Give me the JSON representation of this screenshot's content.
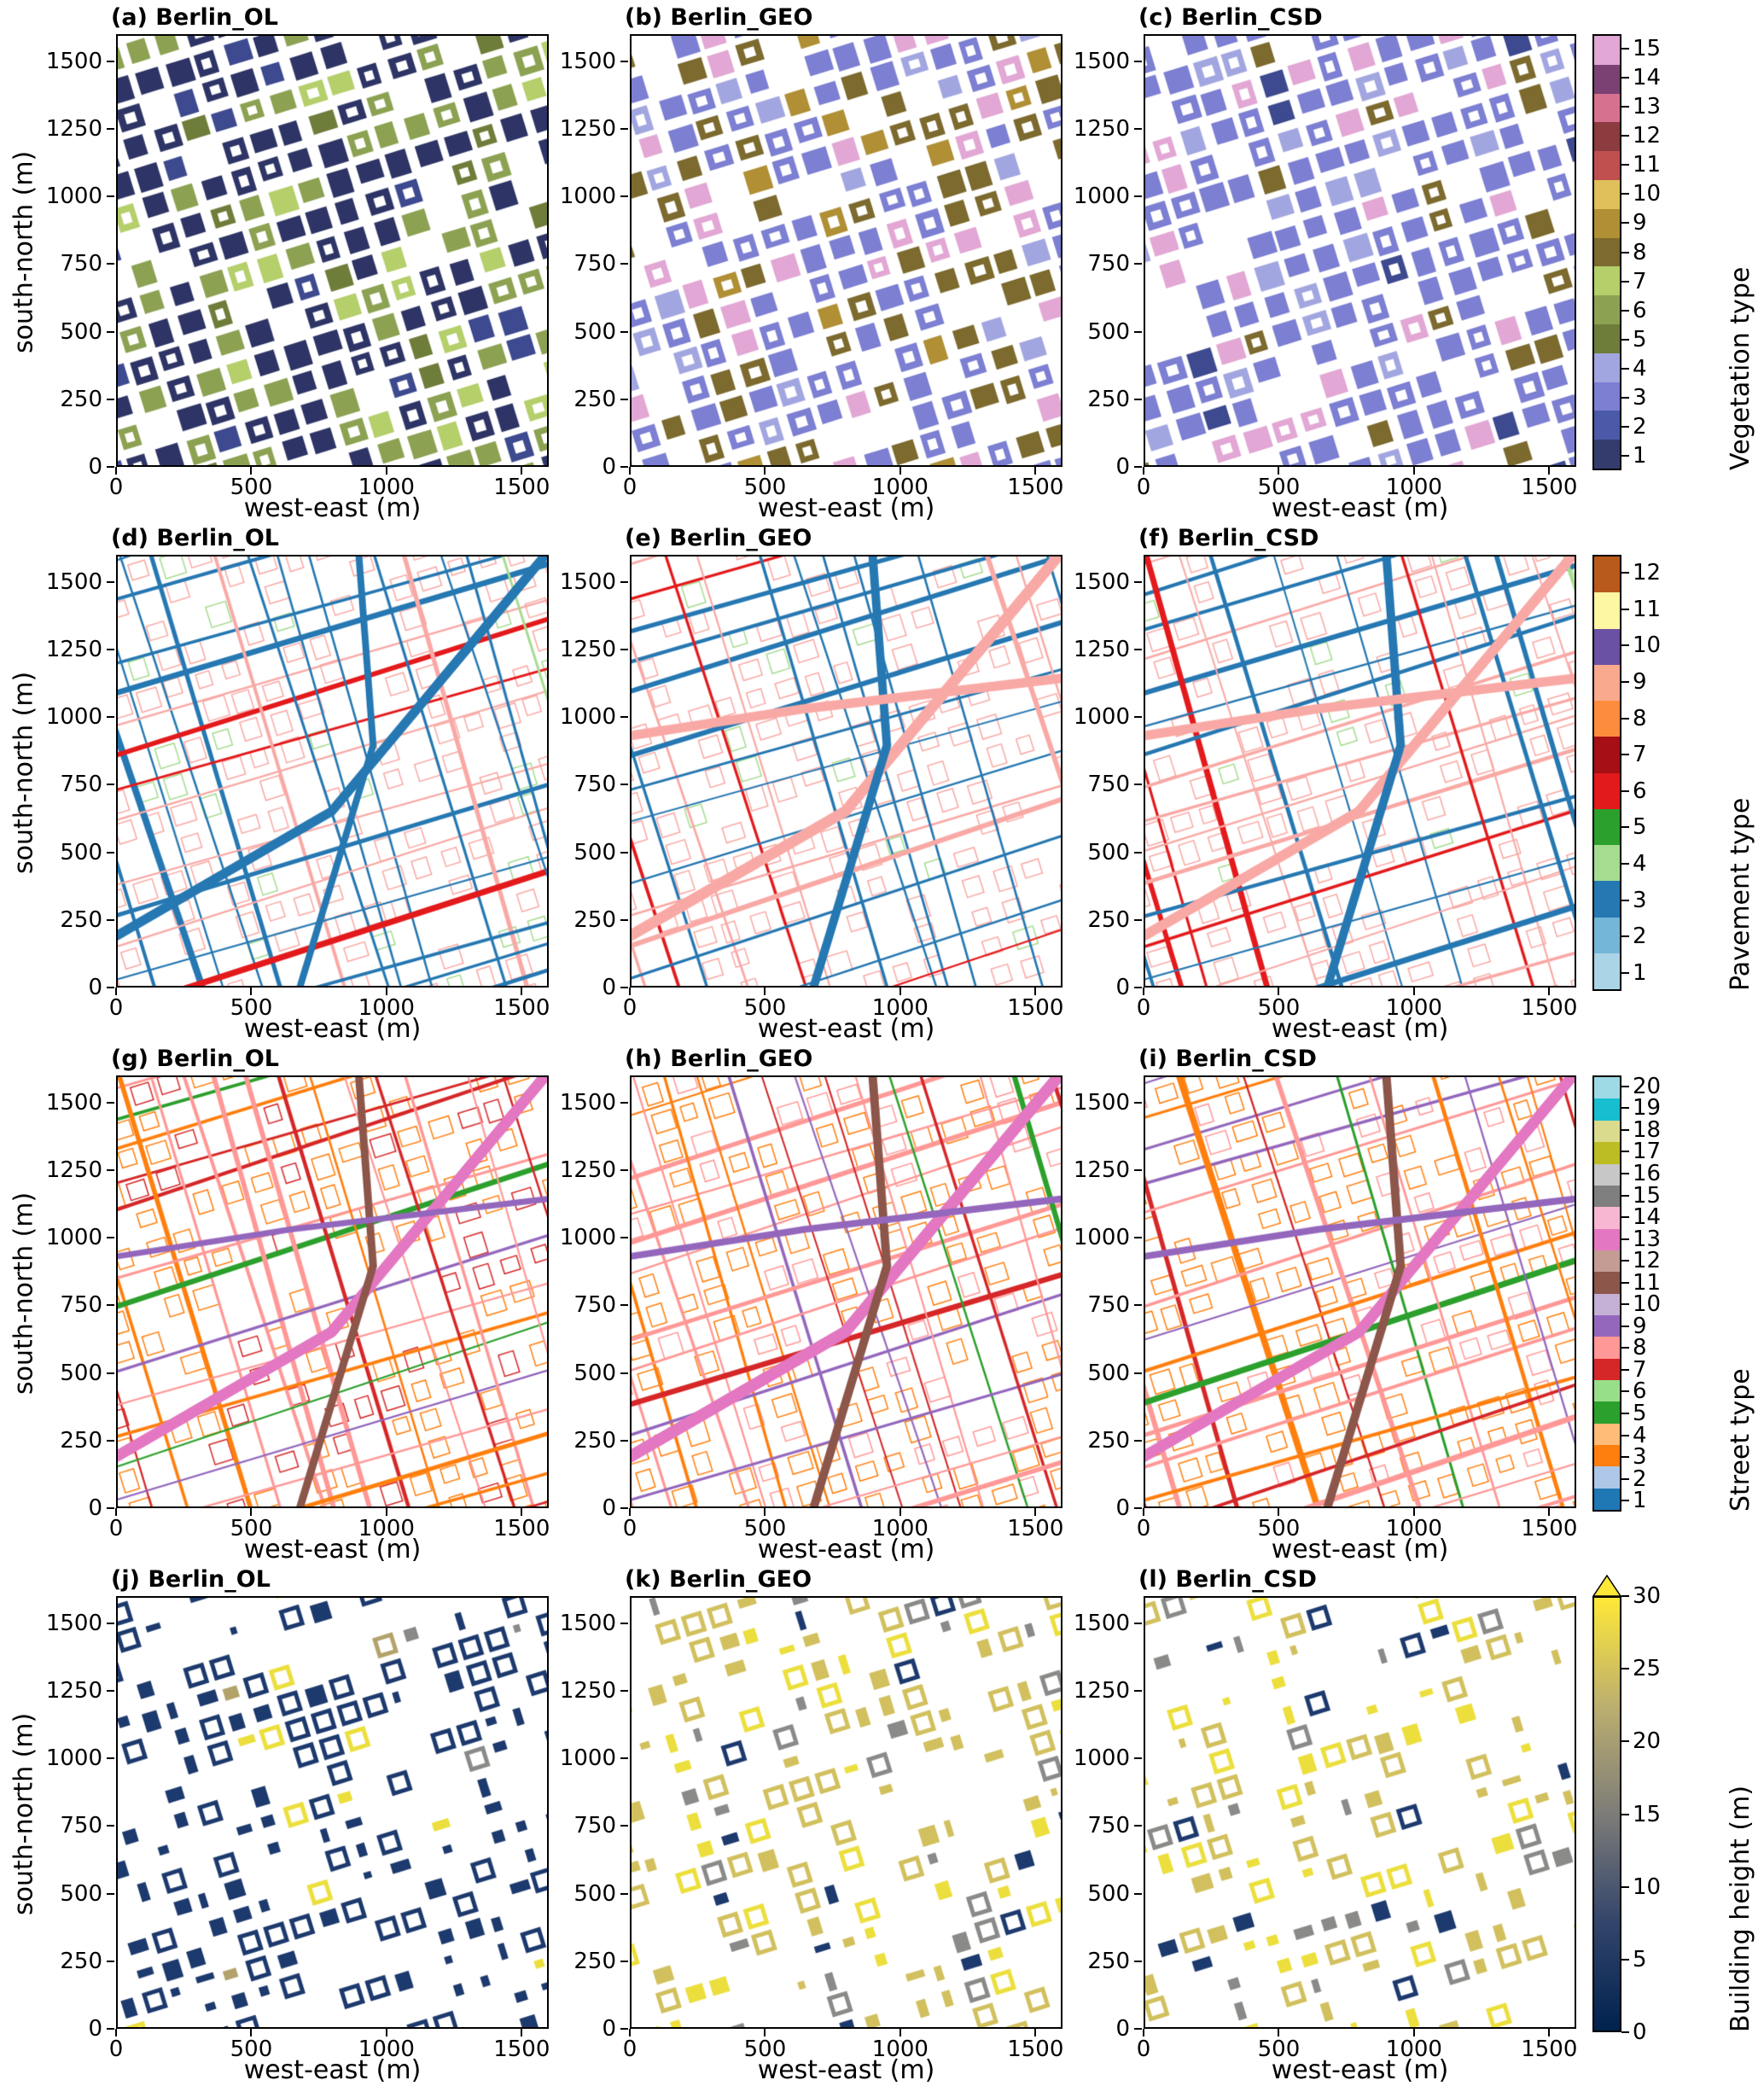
{
  "chart_data": {
    "type": "heatmap",
    "subtype": "categorical urban surface maps, 4 rows x 3 columns (Berlin_OL, Berlin_GEO, Berlin_CSD)",
    "axes": {
      "xlabel": "west-east (m)",
      "ylabel": "south-north (m)",
      "xticks": [
        0,
        500,
        1000,
        1500
      ],
      "yticks": [
        0,
        250,
        500,
        750,
        1000,
        1250,
        1500
      ],
      "xlim": [
        0,
        1600
      ],
      "ylim": [
        0,
        1600
      ]
    },
    "rows": [
      {
        "id": "vegetation",
        "colorbar": {
          "label": "Vegetation type",
          "kind": "discrete",
          "ticks": [
            1,
            2,
            3,
            4,
            5,
            6,
            7,
            8,
            9,
            10,
            11,
            12,
            13,
            14,
            15
          ],
          "colors": [
            "#343c6d",
            "#4a5aa8",
            "#7c7fd2",
            "#a2a6e0",
            "#6f7d3a",
            "#8ca252",
            "#b5cf6b",
            "#7c6a2e",
            "#b08f35",
            "#dfc05a",
            "#c05050",
            "#8c3b3e",
            "#d6718f",
            "#7b4173",
            "#e2a7d4"
          ]
        },
        "panels": [
          {
            "label": "(a) Berlin_OL",
            "seed": 101,
            "pattern": "blocks",
            "fill": 0.9,
            "palette": [
              {
                "color": "#2e3566",
                "w": 0.5
              },
              {
                "color": "#3d4a8f",
                "w": 0.1
              },
              {
                "color": "#8ca252",
                "w": 0.24
              },
              {
                "color": "#6f7d3a",
                "w": 0.1
              },
              {
                "color": "#b5cf6b",
                "w": 0.06
              }
            ]
          },
          {
            "label": "(b) Berlin_GEO",
            "seed": 102,
            "pattern": "blocks",
            "fill": 0.82,
            "palette": [
              {
                "color": "#7c7fd2",
                "w": 0.42
              },
              {
                "color": "#a2a6e0",
                "w": 0.1
              },
              {
                "color": "#7c6a2e",
                "w": 0.28
              },
              {
                "color": "#e2a7d4",
                "w": 0.13
              },
              {
                "color": "#b08f35",
                "w": 0.07
              }
            ]
          },
          {
            "label": "(c) Berlin_CSD",
            "seed": 103,
            "pattern": "blocks",
            "fill": 0.8,
            "palette": [
              {
                "color": "#7c7fd2",
                "w": 0.62
              },
              {
                "color": "#a2a6e0",
                "w": 0.12
              },
              {
                "color": "#e2a7d4",
                "w": 0.16
              },
              {
                "color": "#7c6a2e",
                "w": 0.05
              },
              {
                "color": "#3d4a8f",
                "w": 0.05
              }
            ]
          }
        ]
      },
      {
        "id": "pavement",
        "colorbar": {
          "label": "Pavement type",
          "kind": "discrete",
          "ticks": [
            1,
            2,
            3,
            4,
            5,
            6,
            7,
            8,
            9,
            10,
            11,
            12
          ],
          "colors": [
            "#abd4e6",
            "#74b6d8",
            "#2678b2",
            "#a6dc90",
            "#2ca02c",
            "#e31a1c",
            "#a50f15",
            "#fd8d3c",
            "#f9a98d",
            "#6a51a3",
            "#fdf6a3",
            "#b95a1d"
          ]
        },
        "panels": [
          {
            "label": "(d) Berlin_OL",
            "seed": 104,
            "pattern": "network",
            "minor": [
              {
                "color": "#f9a9a5",
                "w": 0.85
              },
              {
                "color": "#a6dc90",
                "w": 0.15
              }
            ],
            "streets": [
              {
                "color": "#2678b2",
                "w": 0.6
              },
              {
                "color": "#f9a9a5",
                "w": 0.28
              },
              {
                "color": "#a6dc90",
                "w": 0.07
              },
              {
                "color": "#e31a1c",
                "w": 0.05
              }
            ],
            "major": [
              {
                "color": "#2678b2",
                "width": 11
              },
              {
                "color": "#2678b2",
                "width": 8
              }
            ]
          },
          {
            "label": "(e) Berlin_GEO",
            "seed": 105,
            "pattern": "network",
            "minor": [
              {
                "color": "#f9a9a5",
                "w": 0.9
              },
              {
                "color": "#a6dc90",
                "w": 0.1
              }
            ],
            "streets": [
              {
                "color": "#2678b2",
                "w": 0.5
              },
              {
                "color": "#f9a9a5",
                "w": 0.3
              },
              {
                "color": "#e31a1c",
                "w": 0.12
              },
              {
                "color": "#2ca02c",
                "w": 0.04
              },
              {
                "color": "#a6dc90",
                "w": 0.04
              }
            ],
            "major": [
              {
                "color": "#f9a9a5",
                "width": 13
              },
              {
                "color": "#2678b2",
                "width": 10
              },
              {
                "color": "#f9a9a5",
                "width": 11
              }
            ]
          },
          {
            "label": "(f) Berlin_CSD",
            "seed": 106,
            "pattern": "network",
            "minor": [
              {
                "color": "#f9a9a5",
                "w": 0.9
              },
              {
                "color": "#a6dc90",
                "w": 0.1
              }
            ],
            "streets": [
              {
                "color": "#2678b2",
                "w": 0.52
              },
              {
                "color": "#f9a9a5",
                "w": 0.28
              },
              {
                "color": "#e31a1c",
                "w": 0.12
              },
              {
                "color": "#2ca02c",
                "w": 0.04
              },
              {
                "color": "#a6dc90",
                "w": 0.04
              }
            ],
            "major": [
              {
                "color": "#f9a9a5",
                "width": 12
              },
              {
                "color": "#2678b2",
                "width": 10
              },
              {
                "color": "#f9a9a5",
                "width": 11
              }
            ]
          }
        ]
      },
      {
        "id": "street",
        "colorbar": {
          "label": "Street type",
          "kind": "discrete",
          "ticks": [
            1,
            2,
            3,
            4,
            5,
            6,
            7,
            8,
            9,
            10,
            11,
            12,
            13,
            14,
            15,
            16,
            17,
            18,
            19,
            20
          ],
          "colors": [
            "#1f77b4",
            "#aec7e8",
            "#ff7f0e",
            "#ffbb78",
            "#2ca02c",
            "#98df8a",
            "#d62728",
            "#ff9896",
            "#9467bd",
            "#c5b0d5",
            "#8c564b",
            "#c49c94",
            "#e377c2",
            "#f7b6d2",
            "#7f7f7f",
            "#c7c7c7",
            "#bcbd22",
            "#dbdb8d",
            "#17becf",
            "#9edae5"
          ]
        },
        "panels": [
          {
            "label": "(g) Berlin_OL",
            "seed": 107,
            "pattern": "network",
            "minor": [
              {
                "color": "#ff7f0e",
                "w": 0.7
              },
              {
                "color": "#d62728",
                "w": 0.3
              }
            ],
            "streets": [
              {
                "color": "#ff9896",
                "w": 0.36
              },
              {
                "color": "#ff7f0e",
                "w": 0.3
              },
              {
                "color": "#d62728",
                "w": 0.24
              },
              {
                "color": "#9467bd",
                "w": 0.05
              },
              {
                "color": "#2ca02c",
                "w": 0.05
              }
            ],
            "major": [
              {
                "color": "#e377c2",
                "width": 13
              },
              {
                "color": "#8c564b",
                "width": 9
              },
              {
                "color": "#9467bd",
                "width": 7
              }
            ]
          },
          {
            "label": "(h) Berlin_GEO",
            "seed": 108,
            "pattern": "network",
            "minor": [
              {
                "color": "#ff7f0e",
                "w": 0.75
              },
              {
                "color": "#ff9896",
                "w": 0.25
              }
            ],
            "streets": [
              {
                "color": "#ff9896",
                "w": 0.48
              },
              {
                "color": "#ff7f0e",
                "w": 0.2
              },
              {
                "color": "#d62728",
                "w": 0.17
              },
              {
                "color": "#9467bd",
                "w": 0.1
              },
              {
                "color": "#2ca02c",
                "w": 0.05
              }
            ],
            "major": [
              {
                "color": "#e377c2",
                "width": 14
              },
              {
                "color": "#8c564b",
                "width": 10
              },
              {
                "color": "#9467bd",
                "width": 8
              }
            ]
          },
          {
            "label": "(i) Berlin_CSD",
            "seed": 109,
            "pattern": "network",
            "minor": [
              {
                "color": "#ff7f0e",
                "w": 0.75
              },
              {
                "color": "#ff9896",
                "w": 0.25
              }
            ],
            "streets": [
              {
                "color": "#ff9896",
                "w": 0.48
              },
              {
                "color": "#ff7f0e",
                "w": 0.2
              },
              {
                "color": "#d62728",
                "w": 0.17
              },
              {
                "color": "#9467bd",
                "w": 0.1
              },
              {
                "color": "#2ca02c",
                "w": 0.05
              }
            ],
            "major": [
              {
                "color": "#e377c2",
                "width": 13
              },
              {
                "color": "#8c564b",
                "width": 10
              },
              {
                "color": "#9467bd",
                "width": 8
              }
            ]
          }
        ]
      },
      {
        "id": "building_height",
        "colorbar": {
          "label": "Building height (m)",
          "kind": "continuous",
          "ticks": [
            0,
            5,
            10,
            15,
            20,
            25,
            30
          ],
          "gradient": [
            "#00224e",
            "#33456b",
            "#7d7c78",
            "#bcaf6f",
            "#fee838"
          ],
          "extend_max": true
        },
        "panels": [
          {
            "label": "(j) Berlin_OL",
            "seed": 110,
            "pattern": "buildings",
            "fill": 0.58,
            "palette": [
              {
                "color": "#1d3a6e",
                "w": 0.88
              },
              {
                "color": "#ecdf3d",
                "w": 0.05
              },
              {
                "color": "#b3a36b",
                "w": 0.04
              },
              {
                "color": "#8a8a88",
                "w": 0.03
              }
            ]
          },
          {
            "label": "(k) Berlin_GEO",
            "seed": 111,
            "pattern": "buildings",
            "fill": 0.52,
            "palette": [
              {
                "color": "#d2c05e",
                "w": 0.45
              },
              {
                "color": "#ecdf3d",
                "w": 0.28
              },
              {
                "color": "#8a8a88",
                "w": 0.15
              },
              {
                "color": "#1d3a6e",
                "w": 0.12
              }
            ]
          },
          {
            "label": "(l) Berlin_CSD",
            "seed": 112,
            "pattern": "buildings",
            "fill": 0.5,
            "palette": [
              {
                "color": "#d2c05e",
                "w": 0.45
              },
              {
                "color": "#ecdf3d",
                "w": 0.28
              },
              {
                "color": "#8a8a88",
                "w": 0.15
              },
              {
                "color": "#1d3a6e",
                "w": 0.12
              }
            ]
          }
        ]
      }
    ]
  }
}
